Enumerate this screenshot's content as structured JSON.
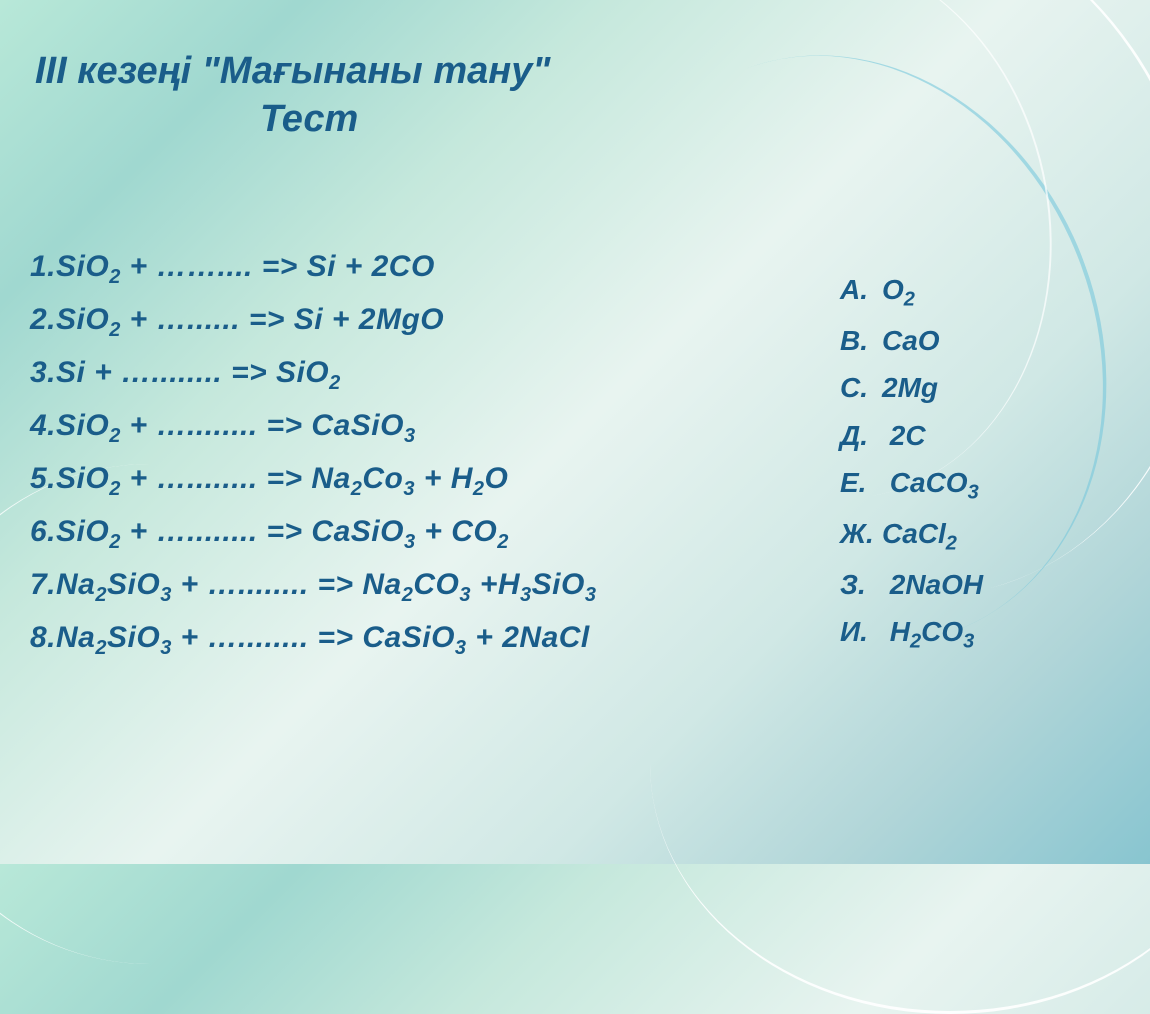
{
  "title": {
    "line1": "III кезеңі \"Мағынаны тану\"",
    "line2": "Тест"
  },
  "equations": [
    {
      "num": "1.",
      "left": "SiO",
      "leftSub": "2",
      "mid": " + …….... => Si + 2CO"
    },
    {
      "num": "2.",
      "left": "SiO",
      "leftSub": "2",
      "mid": " + …...... => Si + 2MgO"
    },
    {
      "num": "3.",
      "left": "Si",
      "leftSub": "",
      "mid": " + …........ => SiO",
      "endSub": "2"
    },
    {
      "num": "4.",
      "left": "SiO",
      "leftSub": "2",
      "mid": " + …........ => CaSiO",
      "endSub": "3"
    },
    {
      "num": "5.",
      "left": "SiO",
      "leftSub": "2",
      "mid": " + …........ => Na",
      "midSub": "2",
      "mid2": "Co",
      "mid2Sub": "3",
      "mid3": " + H",
      "mid3Sub": "2",
      "mid4": "O"
    },
    {
      "num": "6.",
      "left": "SiO",
      "leftSub": "2",
      "mid": " + …........ => CaSiO",
      "midSub": "3",
      "mid2": " + CO",
      "mid2Sub": "2"
    },
    {
      "num": "7.",
      "left": "Na",
      "leftSub": "2",
      "left2": "SiO",
      "left2Sub": "3",
      "mid": " + …........ => Na",
      "midSub": "2",
      "mid2": "CO",
      "mid2Sub": "3",
      "mid3": " +H",
      "mid3Sub": "3",
      "mid4": "SiO",
      "mid4Sub": "3"
    },
    {
      "num": "8.",
      "left": "Na",
      "leftSub": "2",
      "left2": "SiO",
      "left2Sub": "3",
      "mid": " + …........ => CaSiO",
      "midSub": "3",
      "mid2": " + 2NaCl"
    }
  ],
  "answers": [
    {
      "letter": "А.",
      "value": "O",
      "sub": "2"
    },
    {
      "letter": "В.",
      "value": "CaO",
      "sub": ""
    },
    {
      "letter": "С.",
      "value": "2Mg",
      "sub": ""
    },
    {
      "letter": "Д.",
      "value": " 2C",
      "sub": ""
    },
    {
      "letter": "Е.",
      "value": " CaCO",
      "sub": "3"
    },
    {
      "letter": "Ж.",
      "value": "CaCl",
      "sub": "2"
    },
    {
      "letter": "З.",
      "value": " 2NaOH",
      "sub": ""
    },
    {
      "letter": "И.",
      "value": " H",
      "sub": "2",
      "value2": "CO",
      "sub2": "3"
    }
  ],
  "colors": {
    "text": "#1a5d8a",
    "bgGradient": [
      "#b8e8d8",
      "#a0d8d0",
      "#c5e8dc",
      "#e8f4f0",
      "#d0e8e5",
      "#b0d5d8",
      "#88c5d0"
    ]
  },
  "typography": {
    "titleSize": 38,
    "equationSize": 30,
    "answerSize": 28,
    "subSize": 20,
    "style": "bold italic"
  }
}
